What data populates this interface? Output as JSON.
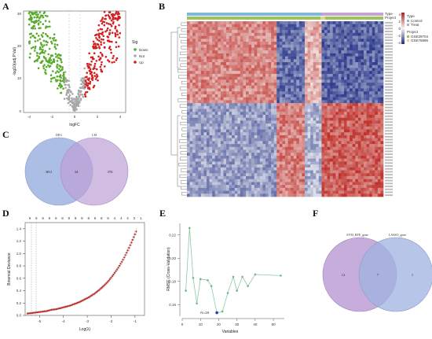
{
  "panels": {
    "A": "A",
    "B": "B",
    "C": "C",
    "D": "D",
    "E": "E",
    "F": "F"
  },
  "volcano": {
    "xlabel": "logFC",
    "ylabel": "-log10(adj.P.Val)",
    "xticks": [
      "-4",
      "-2",
      "0",
      "2",
      "4"
    ],
    "yticks": [
      "0",
      "10",
      "20",
      "30"
    ],
    "legend_title": "Sig",
    "legend_items": [
      "Down",
      "Not",
      "Up"
    ],
    "colors": {
      "down": "#5aaa2c",
      "not": "#a8a8a8",
      "up": "#d21e1e"
    }
  },
  "heatmap": {
    "annot_labels": [
      "Type",
      "Project"
    ],
    "legend_type_title": "Type",
    "legend_type_items": [
      "Control",
      "Treat"
    ],
    "legend_project_title": "Project",
    "legend_project_items": [
      "GSE29704",
      "GSE76896"
    ],
    "scale_ticks": [
      "4",
      "2",
      "0",
      "-2",
      "-4"
    ],
    "colors": {
      "high": "#c0302a",
      "mid": "#f4f4f4",
      "low": "#2c3a8c",
      "control": "#7fb8da",
      "treat": "#c8a2d0",
      "proj1": "#9bc45c",
      "proj2": "#e2d58f"
    }
  },
  "venn_c": {
    "left_label": "DEG",
    "right_label": "LM",
    "left_only": "3811",
    "overlap": "34",
    "right_only": "376",
    "colors": {
      "left": "#9fb3e0",
      "right": "#bd9fd6"
    }
  },
  "lasso": {
    "ylabel": "Binomial Deviance",
    "xlabel": "Log(λ)",
    "top_ticks": [
      "9",
      "9",
      "9",
      "9",
      "9",
      "8",
      "9",
      "9",
      "9",
      "8",
      "6",
      "8",
      "6",
      "4",
      "4",
      "4",
      "3",
      "1"
    ],
    "xticks": [
      "-5",
      "-4",
      "-3",
      "-2",
      "-1"
    ],
    "yticks": [
      "0.0",
      "0.2",
      "0.4",
      "0.6",
      "0.8",
      "1.0",
      "1.2",
      "1.4"
    ]
  },
  "rfe": {
    "ylabel": "RMSE (Cross-Validation)",
    "xlabel": "Variables",
    "annotation": "N=19",
    "xticks": [
      "0",
      "10",
      "20",
      "30",
      "40",
      "50"
    ],
    "yticks": [
      "0.16",
      "0.18",
      "0.20",
      "0.22"
    ]
  },
  "venn_f": {
    "left_label": "SVM_RFE_gene",
    "right_label": "LASSO_gene",
    "left_only": "12",
    "overlap": "7",
    "right_only": "1",
    "colors": {
      "left": "#bd9fd6",
      "right": "#9fb3e0"
    }
  },
  "chart_data": [
    {
      "type": "scatter",
      "panel": "D",
      "xlabel": "Log(λ)",
      "ylabel": "Binomial Deviance",
      "xlim": [
        -5.6,
        -0.6
      ],
      "ylim": [
        0,
        1.5
      ],
      "x": [
        -5.5,
        -5.3,
        -5.1,
        -4.9,
        -4.7,
        -4.5,
        -4.3,
        -4.1,
        -3.9,
        -3.7,
        -3.5,
        -3.3,
        -3.1,
        -2.9,
        -2.7,
        -2.5,
        -2.3,
        -2.1,
        -1.9,
        -1.7,
        -1.5,
        -1.3,
        -1.1,
        -0.9
      ],
      "y": [
        0.03,
        0.04,
        0.05,
        0.06,
        0.07,
        0.09,
        0.1,
        0.12,
        0.14,
        0.16,
        0.19,
        0.22,
        0.26,
        0.3,
        0.35,
        0.41,
        0.48,
        0.56,
        0.66,
        0.77,
        0.9,
        1.05,
        1.22,
        1.4
      ]
    },
    {
      "type": "line",
      "panel": "E",
      "xlabel": "Variables",
      "ylabel": "RMSE (Cross-Validation)",
      "xlim": [
        0,
        56
      ],
      "ylim": [
        0.15,
        0.23
      ],
      "x": [
        2,
        4,
        6,
        8,
        10,
        14,
        16,
        19,
        22,
        25,
        28,
        30,
        33,
        36,
        40,
        54
      ],
      "y": [
        0.172,
        0.226,
        0.183,
        0.161,
        0.182,
        0.181,
        0.176,
        0.153,
        0.154,
        0.17,
        0.184,
        0.172,
        0.184,
        0.176,
        0.186,
        0.185
      ]
    }
  ]
}
